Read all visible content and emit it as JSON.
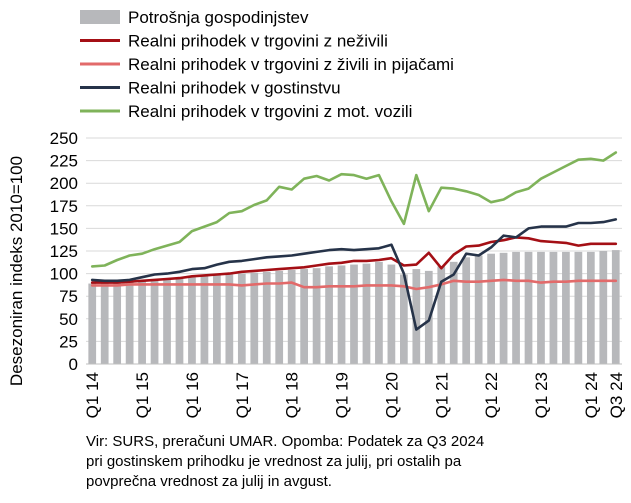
{
  "chart_data": {
    "type": "bar+line",
    "ylabel": "Desezoniran indeks 2010=100",
    "ylim": [
      0,
      250
    ],
    "yticks": [
      0,
      25,
      50,
      75,
      100,
      125,
      150,
      175,
      200,
      225,
      250
    ],
    "grid": true,
    "legend_position": "top-left",
    "x": [
      "Q1 14",
      "Q2 14",
      "Q3 14",
      "Q4 14",
      "Q1 15",
      "Q2 15",
      "Q3 15",
      "Q4 15",
      "Q1 16",
      "Q2 16",
      "Q3 16",
      "Q4 16",
      "Q1 17",
      "Q2 17",
      "Q3 17",
      "Q4 17",
      "Q1 18",
      "Q2 18",
      "Q3 18",
      "Q4 18",
      "Q1 19",
      "Q2 19",
      "Q3 19",
      "Q4 19",
      "Q1 20",
      "Q2 20",
      "Q3 20",
      "Q4 20",
      "Q1 21",
      "Q2 21",
      "Q3 21",
      "Q4 21",
      "Q1 22",
      "Q2 22",
      "Q3 22",
      "Q4 22",
      "Q1 23",
      "Q2 23",
      "Q3 23",
      "Q4 23",
      "Q1 24",
      "Q2 24",
      "Q3 24"
    ],
    "xtick_labels": [
      "Q1 14",
      "",
      "",
      "",
      "Q1 15",
      "",
      "",
      "",
      "Q1 16",
      "",
      "",
      "",
      "Q1 17",
      "",
      "",
      "",
      "Q1 18",
      "",
      "",
      "",
      "Q1 19",
      "",
      "",
      "",
      "Q1 20",
      "",
      "",
      "",
      "Q1 21",
      "",
      "",
      "",
      "Q1 22",
      "",
      "",
      "",
      "Q1 23",
      "",
      "",
      "",
      "Q1 24",
      "",
      "Q3 24"
    ],
    "bars": {
      "name": "Potrošnja gospodinjstev",
      "color": "#b7b8bb",
      "values": [
        89,
        89,
        90,
        91,
        92,
        92,
        93,
        94,
        96,
        97,
        98,
        99,
        100,
        101,
        102,
        103,
        104,
        105,
        106,
        108,
        109,
        110,
        111,
        113,
        110,
        99,
        105,
        103,
        108,
        113,
        118,
        120,
        122,
        123,
        124,
        124,
        124,
        124,
        124,
        124,
        124,
        125,
        126
      ]
    },
    "series": [
      {
        "name": "Realni prihodek v trgovini z neživili",
        "color": "#a40f15",
        "values": [
          90,
          90,
          90,
          91,
          92,
          93,
          94,
          95,
          97,
          98,
          99,
          100,
          102,
          103,
          104,
          105,
          106,
          107,
          109,
          111,
          112,
          114,
          114,
          115,
          117,
          109,
          110,
          123,
          106,
          121,
          130,
          131,
          135,
          137,
          140,
          139,
          136,
          135,
          134,
          131,
          133,
          133,
          133
        ]
      },
      {
        "name": "Realni prihodek v trgovini z živili in pijačami",
        "color": "#e26a6a",
        "values": [
          87,
          87,
          87,
          88,
          88,
          88,
          88,
          88,
          88,
          88,
          88,
          88,
          87,
          88,
          89,
          89,
          90,
          85,
          85,
          86,
          86,
          86,
          87,
          87,
          87,
          86,
          83,
          85,
          88,
          92,
          91,
          91,
          92,
          93,
          92,
          92,
          90,
          91,
          91,
          92,
          92,
          92,
          92
        ]
      },
      {
        "name": "Realni prihodek v gostinstvu",
        "color": "#263349",
        "values": [
          93,
          92,
          92,
          93,
          96,
          99,
          100,
          102,
          105,
          106,
          110,
          113,
          114,
          116,
          118,
          119,
          120,
          122,
          124,
          126,
          127,
          126,
          127,
          128,
          132,
          100,
          38,
          48,
          91,
          99,
          122,
          120,
          129,
          142,
          140,
          150,
          152,
          152,
          152,
          156,
          156,
          157,
          160
        ]
      },
      {
        "name": "Realni prihodek v trgovini z mot. vozili",
        "color": "#7fb35a",
        "values": [
          108,
          109,
          115,
          120,
          122,
          127,
          131,
          135,
          147,
          152,
          157,
          167,
          169,
          176,
          181,
          196,
          193,
          205,
          208,
          203,
          210,
          209,
          205,
          209,
          180,
          155,
          209,
          169,
          195,
          194,
          191,
          187,
          179,
          182,
          190,
          194,
          205,
          212,
          219,
          226,
          227,
          225,
          234
        ]
      }
    ]
  },
  "note": "Vir: SURS, preračuni UMAR. Opomba: Podatek za Q3 2024\npri gostinskem prihodku je vrednost za julij, pri ostalih pa\npovprečna vrednost za julij in avgust."
}
